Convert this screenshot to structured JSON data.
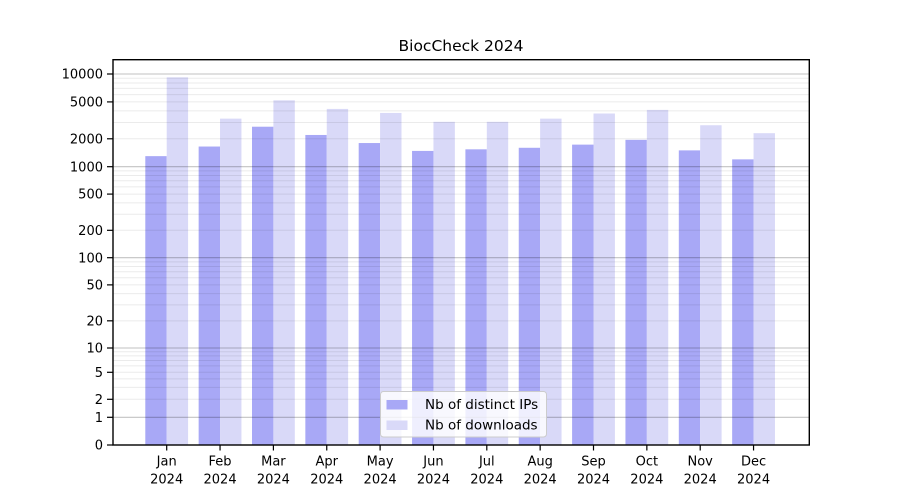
{
  "chart_data": {
    "type": "bar",
    "title": "BiocCheck 2024",
    "categories": [
      "Jan",
      "Feb",
      "Mar",
      "Apr",
      "May",
      "Jun",
      "Jul",
      "Aug",
      "Sep",
      "Oct",
      "Nov",
      "Dec"
    ],
    "category_year": "2024",
    "series": [
      {
        "name": "Nb of distinct IPs",
        "color": "#a8a8f6",
        "values": [
          1300,
          1650,
          2700,
          2200,
          1800,
          1480,
          1540,
          1600,
          1730,
          1950,
          1500,
          1200
        ]
      },
      {
        "name": "Nb of downloads",
        "color": "#d9d9f8",
        "values": [
          9200,
          3300,
          5200,
          4200,
          3800,
          3050,
          3050,
          3300,
          3750,
          4100,
          2800,
          2300
        ]
      }
    ],
    "xlabel": "",
    "ylabel": "",
    "yscale": "symlog",
    "yticks": [
      0,
      1,
      2,
      5,
      10,
      20,
      50,
      100,
      200,
      500,
      1000,
      2000,
      5000,
      10000
    ],
    "ylim": [
      0,
      14000
    ],
    "grid": true,
    "legend_position": "lower center"
  }
}
